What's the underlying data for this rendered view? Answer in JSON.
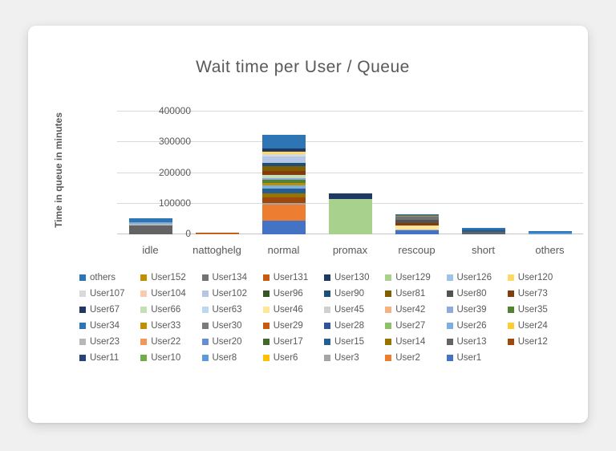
{
  "card": {
    "title": "Wait time per User / Queue"
  },
  "chart_data": {
    "type": "bar",
    "stacked": true,
    "title": "Wait time per User / Queue",
    "xlabel": "",
    "ylabel": "Time in queue in minutes",
    "categories": [
      "idle",
      "nattoghelg",
      "normal",
      "promax",
      "rescoup",
      "short",
      "others"
    ],
    "ylim": [
      0,
      400000
    ],
    "yticks": [
      0,
      100000,
      200000,
      300000,
      400000
    ],
    "ytick_labels": [
      "0",
      "100000",
      "200000",
      "300000",
      "400000"
    ],
    "grid": true,
    "legend_position": "bottom",
    "legend_display_order": "reverse",
    "series": [
      {
        "name": "User1",
        "color": "#4472C4",
        "values": [
          0,
          0,
          45000,
          0,
          12000,
          0,
          0
        ]
      },
      {
        "name": "User2",
        "color": "#ED7D31",
        "values": [
          0,
          2000,
          52000,
          0,
          0,
          0,
          0
        ]
      },
      {
        "name": "User3",
        "color": "#A5A5A5",
        "values": [
          0,
          1500,
          6000,
          0,
          0,
          0,
          0
        ]
      },
      {
        "name": "User6",
        "color": "#FFC000",
        "values": [
          0,
          0,
          0,
          0,
          0,
          0,
          0
        ]
      },
      {
        "name": "User8",
        "color": "#5B9BD5",
        "values": [
          0,
          0,
          0,
          0,
          0,
          0,
          4000
        ]
      },
      {
        "name": "User10",
        "color": "#70AD47",
        "values": [
          0,
          0,
          0,
          0,
          0,
          0,
          0
        ]
      },
      {
        "name": "User11",
        "color": "#264478",
        "values": [
          0,
          0,
          0,
          0,
          0,
          0,
          0
        ]
      },
      {
        "name": "User12",
        "color": "#9E480E",
        "values": [
          0,
          3000,
          18000,
          0,
          0,
          0,
          0
        ]
      },
      {
        "name": "User13",
        "color": "#636363",
        "values": [
          30000,
          0,
          0,
          0,
          0,
          8000,
          0
        ]
      },
      {
        "name": "User14",
        "color": "#997300",
        "values": [
          0,
          0,
          13000,
          0,
          0,
          0,
          0
        ]
      },
      {
        "name": "User15",
        "color": "#255E91",
        "values": [
          0,
          0,
          16000,
          0,
          0,
          8000,
          0
        ]
      },
      {
        "name": "User17",
        "color": "#43682B",
        "values": [
          0,
          0,
          0,
          0,
          0,
          0,
          0
        ]
      },
      {
        "name": "User20",
        "color": "#698ED0",
        "values": [
          0,
          0,
          0,
          0,
          0,
          0,
          0
        ]
      },
      {
        "name": "User22",
        "color": "#F1975A",
        "values": [
          0,
          0,
          0,
          0,
          0,
          0,
          0
        ]
      },
      {
        "name": "User23",
        "color": "#B7B7B7",
        "values": [
          3000,
          0,
          0,
          0,
          3000,
          0,
          0
        ]
      },
      {
        "name": "User24",
        "color": "#FFCD33",
        "values": [
          0,
          0,
          0,
          0,
          0,
          0,
          0
        ]
      },
      {
        "name": "User26",
        "color": "#7CAFDD",
        "values": [
          5000,
          0,
          10000,
          0,
          0,
          0,
          0
        ]
      },
      {
        "name": "User27",
        "color": "#8CC168",
        "values": [
          0,
          0,
          0,
          0,
          0,
          0,
          0
        ]
      },
      {
        "name": "User28",
        "color": "#2F5597",
        "values": [
          0,
          0,
          0,
          0,
          0,
          0,
          0
        ]
      },
      {
        "name": "User29",
        "color": "#C55A11",
        "values": [
          0,
          0,
          0,
          0,
          0,
          0,
          0
        ]
      },
      {
        "name": "User30",
        "color": "#7B7B7B",
        "values": [
          0,
          0,
          0,
          0,
          0,
          0,
          0
        ]
      },
      {
        "name": "User33",
        "color": "#BF8F00",
        "values": [
          0,
          0,
          8000,
          0,
          0,
          0,
          0
        ]
      },
      {
        "name": "User34",
        "color": "#2E75B6",
        "values": [
          0,
          0,
          0,
          0,
          0,
          0,
          0
        ]
      },
      {
        "name": "User35",
        "color": "#538135",
        "values": [
          0,
          0,
          10000,
          0,
          0,
          0,
          0
        ]
      },
      {
        "name": "User39",
        "color": "#8FAADC",
        "values": [
          0,
          0,
          6000,
          0,
          0,
          0,
          0
        ]
      },
      {
        "name": "User42",
        "color": "#F4B183",
        "values": [
          0,
          0,
          0,
          0,
          0,
          0,
          0
        ]
      },
      {
        "name": "User45",
        "color": "#CFCFCF",
        "values": [
          0,
          0,
          0,
          0,
          0,
          0,
          0
        ]
      },
      {
        "name": "User46",
        "color": "#FFE699",
        "values": [
          0,
          0,
          0,
          0,
          13000,
          0,
          0
        ]
      },
      {
        "name": "User63",
        "color": "#BDD7EE",
        "values": [
          0,
          0,
          0,
          0,
          0,
          0,
          0
        ]
      },
      {
        "name": "User66",
        "color": "#C5E0B4",
        "values": [
          0,
          0,
          10000,
          0,
          0,
          0,
          0
        ]
      },
      {
        "name": "User67",
        "color": "#1F3864",
        "values": [
          0,
          0,
          0,
          0,
          0,
          0,
          0
        ]
      },
      {
        "name": "User73",
        "color": "#843C0C",
        "values": [
          0,
          0,
          14000,
          0,
          10000,
          0,
          0
        ]
      },
      {
        "name": "User80",
        "color": "#525252",
        "values": [
          0,
          0,
          0,
          0,
          9000,
          0,
          0
        ]
      },
      {
        "name": "User81",
        "color": "#7F6000",
        "values": [
          0,
          0,
          14000,
          0,
          0,
          0,
          0
        ]
      },
      {
        "name": "User90",
        "color": "#1F4E79",
        "values": [
          0,
          0,
          12000,
          0,
          0,
          0,
          0
        ]
      },
      {
        "name": "User96",
        "color": "#375623",
        "values": [
          0,
          0,
          0,
          0,
          0,
          0,
          0
        ]
      },
      {
        "name": "User102",
        "color": "#B4C7E7",
        "values": [
          0,
          0,
          20000,
          0,
          0,
          0,
          0
        ]
      },
      {
        "name": "User104",
        "color": "#F8CBAD",
        "values": [
          0,
          0,
          0,
          0,
          0,
          0,
          0
        ]
      },
      {
        "name": "User107",
        "color": "#D9D9D9",
        "values": [
          0,
          0,
          8000,
          0,
          0,
          0,
          0
        ]
      },
      {
        "name": "User120",
        "color": "#FFD966",
        "values": [
          0,
          0,
          9000,
          0,
          0,
          0,
          0
        ]
      },
      {
        "name": "User126",
        "color": "#9DC3E6",
        "values": [
          0,
          0,
          0,
          0,
          0,
          0,
          0
        ]
      },
      {
        "name": "User129",
        "color": "#A9D18E",
        "values": [
          0,
          0,
          0,
          116000,
          0,
          0,
          0
        ]
      },
      {
        "name": "User130",
        "color": "#1F3864",
        "values": [
          0,
          0,
          8000,
          17000,
          0,
          0,
          0
        ]
      },
      {
        "name": "User131",
        "color": "#C55A11",
        "values": [
          0,
          0,
          0,
          0,
          0,
          0,
          0
        ]
      },
      {
        "name": "User134",
        "color": "#737373",
        "values": [
          0,
          0,
          0,
          0,
          10000,
          0,
          0
        ]
      },
      {
        "name": "User152",
        "color": "#BF8F00",
        "values": [
          0,
          0,
          0,
          0,
          3000,
          0,
          0
        ]
      },
      {
        "name": "others",
        "color": "#2E75B6",
        "values": [
          14000,
          0,
          46000,
          0,
          6000,
          6000,
          7000
        ]
      }
    ]
  },
  "style": {
    "grid_color": "#d9d9d9",
    "text_color": "#595959",
    "card_background": "#ffffff",
    "page_background": "#f0f0f1"
  }
}
